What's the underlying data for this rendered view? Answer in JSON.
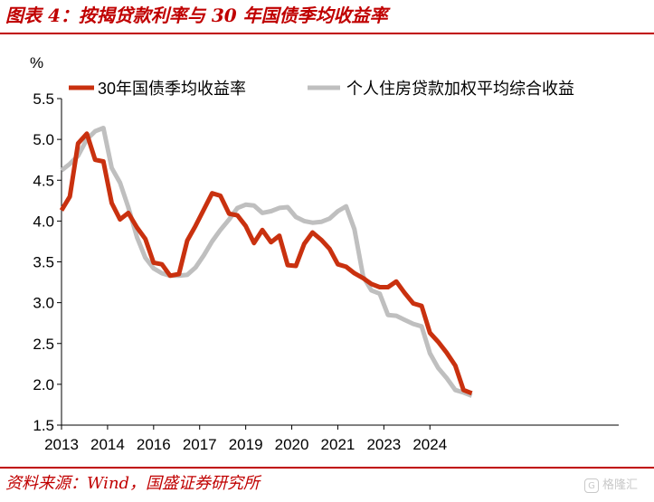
{
  "figure_title": "图表 4：按揭贷款利率与 30 年国债季均收益率",
  "source": "资料来源：Wind，国盛证券研究所",
  "watermark": "格隆汇",
  "chart_data": {
    "type": "line",
    "title": "",
    "ylabel": "%",
    "xlabel": "",
    "ylim": [
      1.5,
      5.5
    ],
    "yticks": [
      1.5,
      2.0,
      2.5,
      3.0,
      3.5,
      4.0,
      4.5,
      5.0,
      5.5
    ],
    "xlim": [
      2013,
      2025.1
    ],
    "xticks": [
      {
        "label": "2013",
        "x": 2013.0
      },
      {
        "label": "2014",
        "x": 2014.0
      },
      {
        "label": "2016",
        "x": 2015.0
      },
      {
        "label": "2017",
        "x": 2016.0
      },
      {
        "label": "2019",
        "x": 2017.0
      },
      {
        "label": "2020",
        "x": 2018.0
      },
      {
        "label": "2021",
        "x": 2019.0
      },
      {
        "label": "2023",
        "x": 2020.0
      },
      {
        "label": "2024",
        "x": 2021.0
      }
    ],
    "legend_position": "top",
    "grid": false,
    "series": [
      {
        "name": "30年国债季均收益率",
        "color": "#c9310f",
        "points": [
          [
            2013.0,
            4.13
          ],
          [
            2013.18,
            4.3
          ],
          [
            2013.36,
            4.95
          ],
          [
            2013.55,
            5.07
          ],
          [
            2013.73,
            4.75
          ],
          [
            2013.91,
            4.73
          ],
          [
            2014.09,
            4.22
          ],
          [
            2014.27,
            4.02
          ],
          [
            2014.45,
            4.1
          ],
          [
            2014.64,
            3.92
          ],
          [
            2014.82,
            3.78
          ],
          [
            2015.0,
            3.49
          ],
          [
            2015.18,
            3.47
          ],
          [
            2015.36,
            3.33
          ],
          [
            2015.55,
            3.35
          ],
          [
            2015.73,
            3.76
          ],
          [
            2015.91,
            3.94
          ],
          [
            2016.09,
            4.14
          ],
          [
            2016.27,
            4.34
          ],
          [
            2016.45,
            4.31
          ],
          [
            2016.64,
            4.09
          ],
          [
            2016.82,
            4.07
          ],
          [
            2017.0,
            3.94
          ],
          [
            2017.18,
            3.73
          ],
          [
            2017.36,
            3.89
          ],
          [
            2017.55,
            3.74
          ],
          [
            2017.73,
            3.82
          ],
          [
            2017.91,
            3.46
          ],
          [
            2018.09,
            3.45
          ],
          [
            2018.27,
            3.72
          ],
          [
            2018.45,
            3.86
          ],
          [
            2018.64,
            3.77
          ],
          [
            2018.82,
            3.66
          ],
          [
            2019.0,
            3.47
          ],
          [
            2019.18,
            3.44
          ],
          [
            2019.36,
            3.36
          ],
          [
            2019.55,
            3.3
          ],
          [
            2019.73,
            3.23
          ],
          [
            2019.91,
            3.19
          ],
          [
            2020.09,
            3.19
          ],
          [
            2020.27,
            3.26
          ],
          [
            2020.45,
            3.12
          ],
          [
            2020.64,
            2.99
          ],
          [
            2020.82,
            2.96
          ],
          [
            2021.0,
            2.63
          ],
          [
            2021.18,
            2.52
          ],
          [
            2021.36,
            2.39
          ],
          [
            2021.55,
            2.23
          ],
          [
            2021.73,
            1.93
          ],
          [
            2021.91,
            1.89
          ]
        ]
      },
      {
        "name": "个人住房贷款加权平均综合收益",
        "color": "#bfbfbf",
        "points": [
          [
            2013.0,
            4.62
          ],
          [
            2013.18,
            4.7
          ],
          [
            2013.36,
            4.8
          ],
          [
            2013.55,
            5.0
          ],
          [
            2013.73,
            5.1
          ],
          [
            2013.91,
            5.14
          ],
          [
            2014.09,
            4.65
          ],
          [
            2014.27,
            4.47
          ],
          [
            2014.45,
            4.17
          ],
          [
            2014.64,
            3.8
          ],
          [
            2014.82,
            3.55
          ],
          [
            2015.0,
            3.42
          ],
          [
            2015.18,
            3.36
          ],
          [
            2015.36,
            3.33
          ],
          [
            2015.55,
            3.33
          ],
          [
            2015.73,
            3.34
          ],
          [
            2015.91,
            3.43
          ],
          [
            2016.09,
            3.58
          ],
          [
            2016.27,
            3.75
          ],
          [
            2016.45,
            3.89
          ],
          [
            2016.64,
            4.02
          ],
          [
            2016.82,
            4.16
          ],
          [
            2017.0,
            4.2
          ],
          [
            2017.18,
            4.19
          ],
          [
            2017.36,
            4.1
          ],
          [
            2017.55,
            4.12
          ],
          [
            2017.73,
            4.16
          ],
          [
            2017.91,
            4.17
          ],
          [
            2018.09,
            4.05
          ],
          [
            2018.27,
            4.0
          ],
          [
            2018.45,
            3.98
          ],
          [
            2018.64,
            3.99
          ],
          [
            2018.82,
            4.03
          ],
          [
            2019.0,
            4.12
          ],
          [
            2019.18,
            4.18
          ],
          [
            2019.36,
            3.9
          ],
          [
            2019.55,
            3.32
          ],
          [
            2019.73,
            3.15
          ],
          [
            2019.91,
            3.11
          ],
          [
            2020.09,
            2.85
          ],
          [
            2020.27,
            2.84
          ],
          [
            2020.45,
            2.79
          ],
          [
            2020.64,
            2.74
          ],
          [
            2020.82,
            2.71
          ],
          [
            2021.0,
            2.38
          ],
          [
            2021.18,
            2.2
          ],
          [
            2021.36,
            2.08
          ],
          [
            2021.55,
            1.93
          ],
          [
            2021.73,
            1.9
          ],
          [
            2021.91,
            1.86
          ]
        ]
      }
    ]
  }
}
